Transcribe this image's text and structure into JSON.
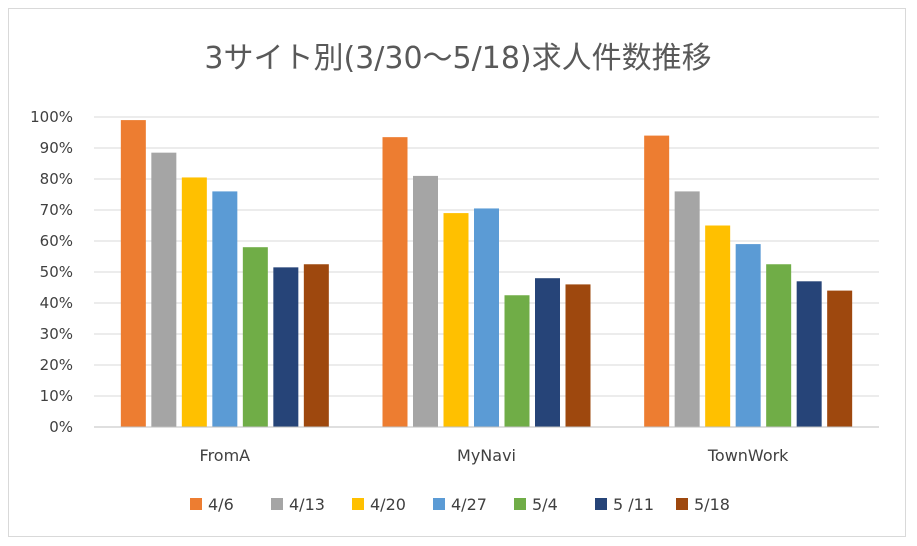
{
  "chart_data": {
    "type": "bar",
    "title": "3サイト別(3/30～5/18)求人件数推移",
    "categories": [
      "FromA",
      "MyNavi",
      "TownWork"
    ],
    "series": [
      {
        "name": "4/6",
        "color": "#ED7D31",
        "values": [
          0.99,
          0.935,
          0.94
        ]
      },
      {
        "name": "4/13",
        "color": "#A5A5A5",
        "values": [
          0.885,
          0.81,
          0.76
        ]
      },
      {
        "name": "4/20",
        "color": "#FFC000",
        "values": [
          0.805,
          0.69,
          0.65
        ]
      },
      {
        "name": "4/27",
        "color": "#5B9BD5",
        "values": [
          0.76,
          0.705,
          0.59
        ]
      },
      {
        "name": "5/4",
        "color": "#70AD47",
        "values": [
          0.58,
          0.425,
          0.525
        ]
      },
      {
        "name": "5 /11",
        "color": "#264478",
        "values": [
          0.515,
          0.48,
          0.47
        ]
      },
      {
        "name": "5/18",
        "color": "#9E480E",
        "values": [
          0.525,
          0.46,
          0.44
        ]
      }
    ],
    "y_ticks": [
      "0%",
      "10%",
      "20%",
      "30%",
      "40%",
      "50%",
      "60%",
      "70%",
      "80%",
      "90%",
      "100%"
    ],
    "ylim": [
      0,
      1
    ],
    "grid": true,
    "legend_position": "bottom"
  }
}
